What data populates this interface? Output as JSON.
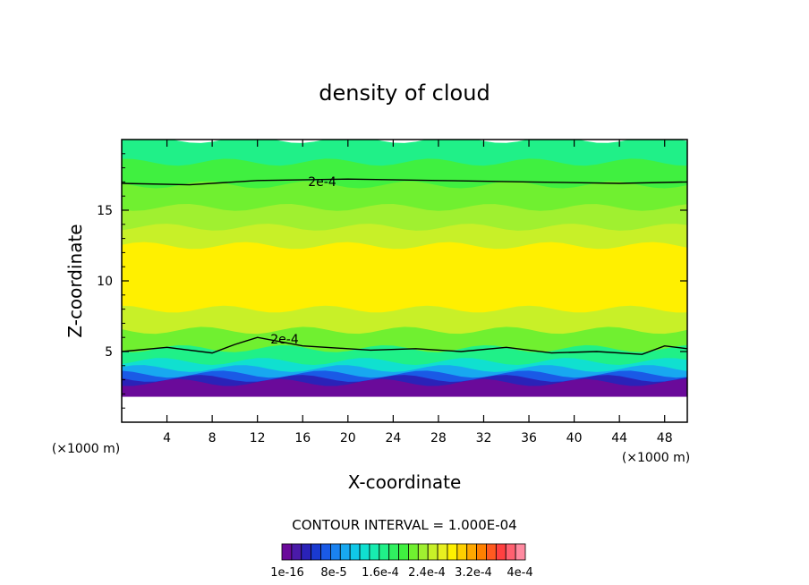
{
  "chart_data": {
    "type": "heatmap",
    "title": "density of cloud",
    "xlabel": "X-coordinate",
    "ylabel": "Z-coordinate",
    "x_unit_left": "(×1000 m)",
    "x_unit_right": "(×1000 m)",
    "xlim": [
      0,
      50
    ],
    "ylim": [
      0,
      20
    ],
    "x_ticks": [
      4,
      8,
      12,
      16,
      20,
      24,
      28,
      32,
      36,
      40,
      44,
      48
    ],
    "y_ticks": [
      5,
      10,
      15
    ],
    "contour_interval_text": "CONTOUR INTERVAL = 1.000E-04",
    "contour_label": "2e-4",
    "colorbar": {
      "colors": [
        "#6a0a9a",
        "#4a1aa8",
        "#2a22b8",
        "#1a3ad0",
        "#1a5ae6",
        "#1a82f0",
        "#18a8f0",
        "#10c8e8",
        "#10e0d0",
        "#18ecb0",
        "#20f088",
        "#30f060",
        "#40f040",
        "#70f030",
        "#a0f030",
        "#c8f028",
        "#e8f020",
        "#fff000",
        "#ffd000",
        "#ffa800",
        "#ff8000",
        "#ff5a20",
        "#ff4040",
        "#ff6070",
        "#ff8aa0"
      ],
      "labels": [
        "1e-16",
        "8e-5",
        "1.6e-4",
        "2.4e-4",
        "3.2e-4",
        "4e-4"
      ]
    },
    "layers": [
      {
        "z_top": 2.8,
        "color": "#6a0a9a"
      },
      {
        "z_top": 3.1,
        "color": "#2a22b8"
      },
      {
        "z_top": 3.4,
        "color": "#1a5ae6"
      },
      {
        "z_top": 3.8,
        "color": "#18a8f0"
      },
      {
        "z_top": 4.3,
        "color": "#10e0d0"
      },
      {
        "z_top": 5.2,
        "color": "#20f088"
      },
      {
        "z_top": 6.5,
        "color": "#70f030"
      },
      {
        "z_top": 8.0,
        "color": "#c8f028"
      },
      {
        "z_top": 12.5,
        "color": "#fff000"
      },
      {
        "z_top": 13.8,
        "color": "#c8f028"
      },
      {
        "z_top": 15.2,
        "color": "#a0f030"
      },
      {
        "z_top": 16.8,
        "color": "#70f030"
      },
      {
        "z_top": 18.4,
        "color": "#40f040"
      },
      {
        "z_top": 20.0,
        "color": "#20f088"
      }
    ],
    "contour_upper": [
      [
        0,
        16.9
      ],
      [
        6,
        16.8
      ],
      [
        12,
        17.1
      ],
      [
        20,
        17.2
      ],
      [
        28,
        17.1
      ],
      [
        36,
        17.0
      ],
      [
        44,
        16.9
      ],
      [
        50,
        17.0
      ]
    ],
    "contour_lower": [
      [
        0,
        5.0
      ],
      [
        4,
        5.3
      ],
      [
        8,
        4.9
      ],
      [
        10,
        5.5
      ],
      [
        12,
        6.0
      ],
      [
        16,
        5.4
      ],
      [
        22,
        5.1
      ],
      [
        26,
        5.2
      ],
      [
        30,
        5.0
      ],
      [
        34,
        5.3
      ],
      [
        38,
        4.9
      ],
      [
        42,
        5.0
      ],
      [
        46,
        4.8
      ],
      [
        48,
        5.4
      ],
      [
        50,
        5.2
      ]
    ]
  }
}
